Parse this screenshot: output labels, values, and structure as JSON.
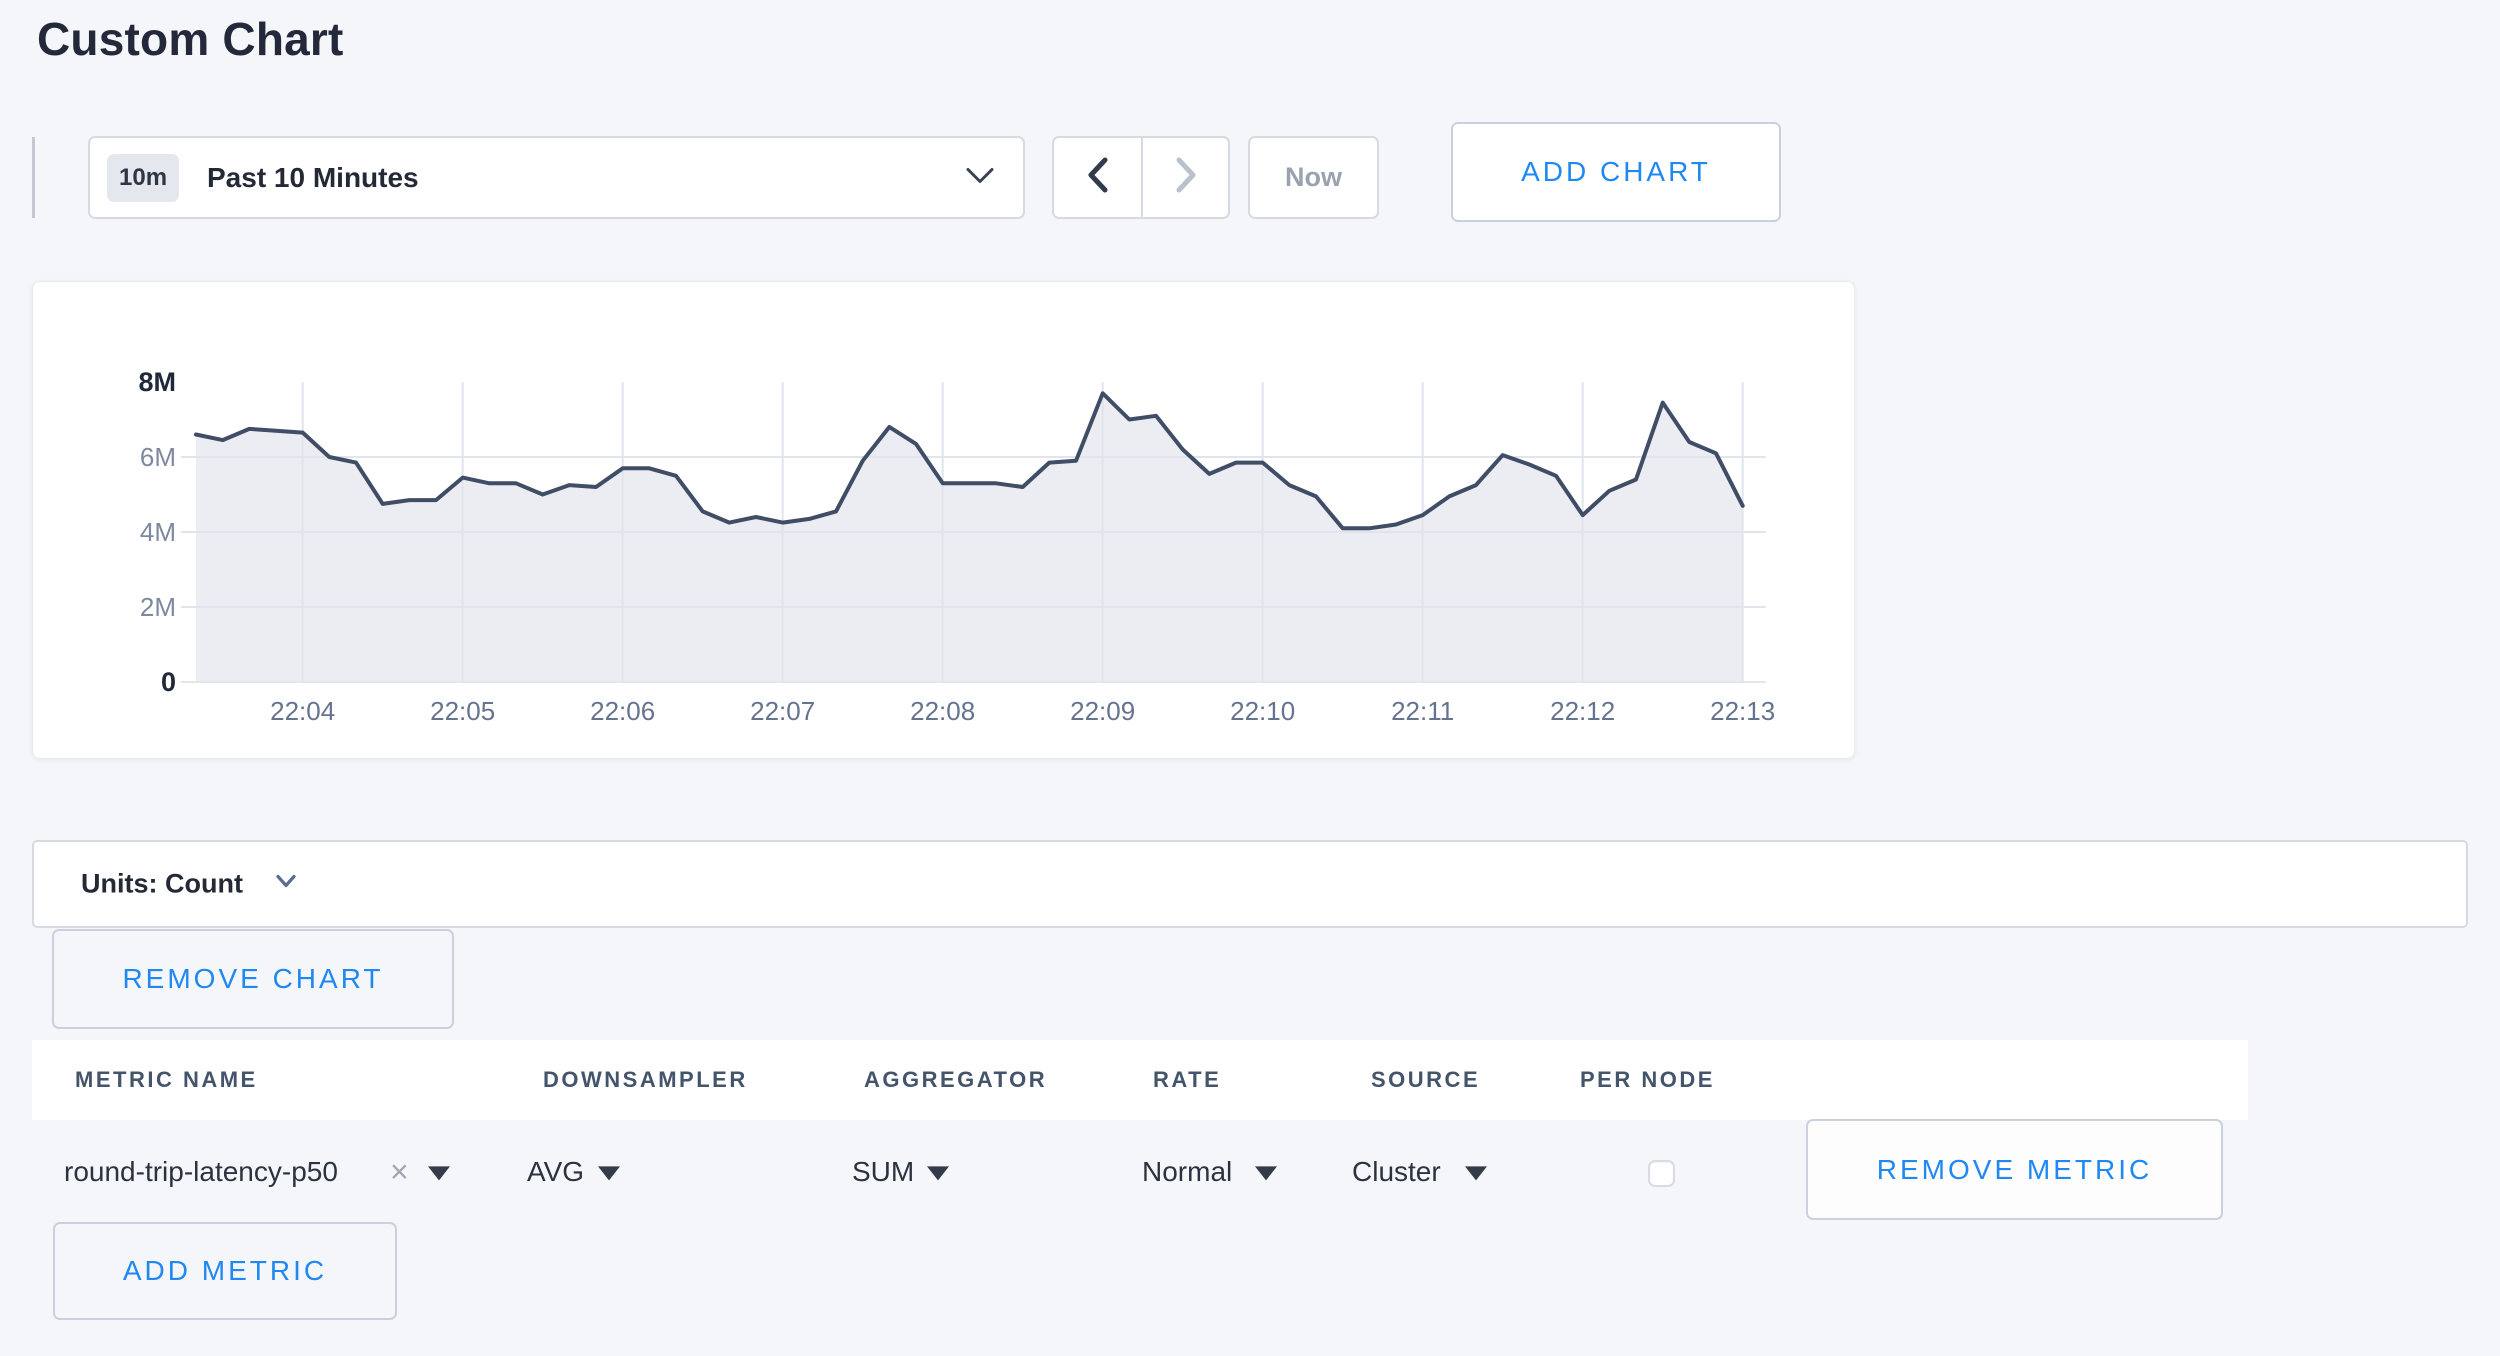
{
  "page": {
    "title": "Custom Chart",
    "background": "#f4f6f9",
    "accent_blue": "#1f88f2"
  },
  "toolbar": {
    "range_badge": "10m",
    "range_label": "Past 10 Minutes",
    "now_label": "Now",
    "add_chart_label": "ADD CHART"
  },
  "chart_data": {
    "type": "area",
    "title": "",
    "xlabel": "",
    "ylabel": "",
    "y_unit": "M",
    "ylim_millions": [
      0,
      8
    ],
    "y_ticks": [
      "0",
      "2M",
      "4M",
      "6M",
      "8M"
    ],
    "y_tick_values_millions": [
      0,
      2,
      4,
      6,
      8
    ],
    "x_tick_labels": [
      "22:04",
      "22:05",
      "22:06",
      "22:07",
      "22:08",
      "22:09",
      "22:10",
      "22:11",
      "22:12",
      "22:13"
    ],
    "interval_seconds": 10,
    "first_tick_offset_seconds": 40,
    "grid": true,
    "legend": "none",
    "line_color": "#404d66",
    "fill_color": "#ecedf2",
    "values_millions": [
      6.6,
      6.45,
      6.75,
      6.7,
      6.65,
      6.0,
      5.85,
      4.75,
      4.85,
      4.85,
      5.45,
      5.3,
      5.3,
      5.0,
      5.25,
      5.2,
      5.7,
      5.7,
      5.5,
      4.55,
      4.25,
      4.4,
      4.25,
      4.35,
      4.55,
      5.9,
      6.8,
      6.35,
      5.3,
      5.3,
      5.3,
      5.2,
      5.85,
      5.9,
      7.7,
      7.0,
      7.1,
      6.2,
      5.55,
      5.85,
      5.85,
      5.25,
      4.95,
      4.1,
      4.1,
      4.2,
      4.45,
      4.95,
      5.25,
      6.05,
      5.8,
      5.5,
      4.45,
      5.1,
      5.4,
      7.45,
      6.4,
      6.1,
      4.7
    ]
  },
  "units_bar": {
    "label": "Units: Count"
  },
  "chart_actions": {
    "remove_chart_label": "REMOVE CHART",
    "add_metric_label": "ADD METRIC"
  },
  "metric_table": {
    "columns": [
      "METRIC NAME",
      "DOWNSAMPLER",
      "AGGREGATOR",
      "RATE",
      "SOURCE",
      "PER NODE"
    ],
    "rows": [
      {
        "metric_name": "round-trip-latency-p50",
        "remove_tag_glyph": "×",
        "downsampler": "AVG",
        "aggregator": "SUM",
        "rate": "Normal",
        "source": "Cluster",
        "per_node_checked": false,
        "remove_label": "REMOVE METRIC"
      }
    ]
  }
}
